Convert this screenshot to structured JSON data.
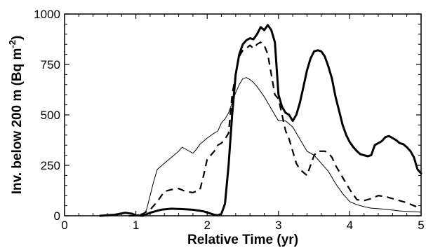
{
  "chart_data": {
    "type": "line",
    "title": "",
    "xlabel": "Relative Time (yr)",
    "ylabel_main": "Inv. below 200 m (Bq m",
    "ylabel_exp": "-2",
    "ylabel_close": ")",
    "xlim": [
      0,
      5
    ],
    "ylim": [
      0,
      1000
    ],
    "xticks": [
      0,
      1,
      2,
      3,
      4,
      5
    ],
    "yticks": [
      0,
      250,
      500,
      750,
      1000
    ],
    "grid": false,
    "legend": "none",
    "series": [
      {
        "style": "thick-solid",
        "color": "#000000",
        "points": [
          [
            0.5,
            0
          ],
          [
            0.7,
            5
          ],
          [
            0.85,
            15
          ],
          [
            0.95,
            10
          ],
          [
            1.0,
            2
          ],
          [
            1.1,
            0
          ],
          [
            1.2,
            15
          ],
          [
            1.35,
            30
          ],
          [
            1.5,
            35
          ],
          [
            1.65,
            33
          ],
          [
            1.8,
            30
          ],
          [
            1.95,
            22
          ],
          [
            2.1,
            5
          ],
          [
            2.15,
            2
          ],
          [
            2.2,
            10
          ],
          [
            2.25,
            60
          ],
          [
            2.3,
            250
          ],
          [
            2.35,
            500
          ],
          [
            2.4,
            700
          ],
          [
            2.45,
            800
          ],
          [
            2.5,
            850
          ],
          [
            2.55,
            870
          ],
          [
            2.6,
            880
          ],
          [
            2.65,
            875
          ],
          [
            2.7,
            900
          ],
          [
            2.75,
            935
          ],
          [
            2.8,
            920
          ],
          [
            2.85,
            945
          ],
          [
            2.9,
            920
          ],
          [
            2.95,
            860
          ],
          [
            3.0,
            600
          ],
          [
            3.05,
            540
          ],
          [
            3.1,
            510
          ],
          [
            3.15,
            500
          ],
          [
            3.2,
            470
          ],
          [
            3.25,
            500
          ],
          [
            3.3,
            560
          ],
          [
            3.35,
            640
          ],
          [
            3.4,
            720
          ],
          [
            3.45,
            780
          ],
          [
            3.5,
            815
          ],
          [
            3.55,
            820
          ],
          [
            3.6,
            815
          ],
          [
            3.65,
            790
          ],
          [
            3.7,
            740
          ],
          [
            3.75,
            680
          ],
          [
            3.8,
            590
          ],
          [
            3.85,
            520
          ],
          [
            3.9,
            450
          ],
          [
            3.95,
            400
          ],
          [
            4.0,
            365
          ],
          [
            4.05,
            340
          ],
          [
            4.1,
            320
          ],
          [
            4.15,
            305
          ],
          [
            4.2,
            300
          ],
          [
            4.25,
            295
          ],
          [
            4.3,
            300
          ],
          [
            4.35,
            350
          ],
          [
            4.4,
            360
          ],
          [
            4.45,
            370
          ],
          [
            4.5,
            390
          ],
          [
            4.55,
            395
          ],
          [
            4.6,
            385
          ],
          [
            4.65,
            375
          ],
          [
            4.7,
            360
          ],
          [
            4.75,
            355
          ],
          [
            4.8,
            340
          ],
          [
            4.85,
            320
          ],
          [
            4.9,
            290
          ],
          [
            4.95,
            230
          ],
          [
            5.0,
            210
          ]
        ]
      },
      {
        "style": "dashed",
        "color": "#000000",
        "points": [
          [
            0.9,
            0
          ],
          [
            1.0,
            0
          ],
          [
            1.1,
            10
          ],
          [
            1.2,
            30
          ],
          [
            1.3,
            70
          ],
          [
            1.4,
            120
          ],
          [
            1.5,
            130
          ],
          [
            1.6,
            135
          ],
          [
            1.7,
            120
          ],
          [
            1.8,
            115
          ],
          [
            1.9,
            130
          ],
          [
            1.95,
            200
          ],
          [
            2.0,
            280
          ],
          [
            2.1,
            320
          ],
          [
            2.15,
            350
          ],
          [
            2.2,
            360
          ],
          [
            2.25,
            380
          ],
          [
            2.3,
            410
          ],
          [
            2.35,
            600
          ],
          [
            2.4,
            700
          ],
          [
            2.45,
            790
          ],
          [
            2.5,
            820
          ],
          [
            2.55,
            830
          ],
          [
            2.6,
            845
          ],
          [
            2.65,
            830
          ],
          [
            2.7,
            850
          ],
          [
            2.75,
            860
          ],
          [
            2.8,
            845
          ],
          [
            2.85,
            800
          ],
          [
            2.9,
            700
          ],
          [
            2.95,
            600
          ],
          [
            3.0,
            580
          ],
          [
            3.05,
            500
          ],
          [
            3.1,
            420
          ],
          [
            3.15,
            380
          ],
          [
            3.2,
            320
          ],
          [
            3.25,
            260
          ],
          [
            3.3,
            230
          ],
          [
            3.35,
            215
          ],
          [
            3.4,
            200
          ],
          [
            3.45,
            250
          ],
          [
            3.5,
            300
          ],
          [
            3.55,
            320
          ],
          [
            3.6,
            320
          ],
          [
            3.65,
            320
          ],
          [
            3.7,
            310
          ],
          [
            3.75,
            290
          ],
          [
            3.8,
            250
          ],
          [
            3.9,
            190
          ],
          [
            4.0,
            130
          ],
          [
            4.1,
            80
          ],
          [
            4.2,
            75
          ],
          [
            4.3,
            85
          ],
          [
            4.4,
            100
          ],
          [
            4.5,
            95
          ],
          [
            4.6,
            85
          ],
          [
            4.7,
            75
          ],
          [
            4.8,
            65
          ],
          [
            4.9,
            50
          ],
          [
            5.0,
            35
          ]
        ]
      },
      {
        "style": "thin-solid",
        "color": "#000000",
        "points": [
          [
            1.1,
            0
          ],
          [
            1.15,
            30
          ],
          [
            1.2,
            100
          ],
          [
            1.25,
            170
          ],
          [
            1.3,
            230
          ],
          [
            1.4,
            260
          ],
          [
            1.5,
            290
          ],
          [
            1.6,
            320
          ],
          [
            1.65,
            340
          ],
          [
            1.7,
            330
          ],
          [
            1.8,
            310
          ],
          [
            1.85,
            330
          ],
          [
            1.9,
            355
          ],
          [
            2.0,
            385
          ],
          [
            2.1,
            410
          ],
          [
            2.15,
            420
          ],
          [
            2.2,
            460
          ],
          [
            2.25,
            480
          ],
          [
            2.3,
            510
          ],
          [
            2.35,
            560
          ],
          [
            2.4,
            610
          ],
          [
            2.45,
            650
          ],
          [
            2.5,
            680
          ],
          [
            2.55,
            685
          ],
          [
            2.6,
            675
          ],
          [
            2.65,
            660
          ],
          [
            2.7,
            640
          ],
          [
            2.8,
            590
          ],
          [
            2.9,
            530
          ],
          [
            3.0,
            470
          ],
          [
            3.1,
            470
          ],
          [
            3.2,
            440
          ],
          [
            3.3,
            380
          ],
          [
            3.4,
            320
          ],
          [
            3.5,
            300
          ],
          [
            3.6,
            260
          ],
          [
            3.7,
            220
          ],
          [
            3.8,
            160
          ],
          [
            3.9,
            110
          ],
          [
            4.0,
            70
          ],
          [
            4.1,
            55
          ],
          [
            4.2,
            45
          ],
          [
            4.3,
            38
          ],
          [
            4.4,
            35
          ],
          [
            4.5,
            32
          ],
          [
            4.6,
            28
          ],
          [
            4.7,
            24
          ],
          [
            4.8,
            22
          ],
          [
            4.9,
            20
          ],
          [
            5.0,
            18
          ]
        ]
      }
    ]
  }
}
